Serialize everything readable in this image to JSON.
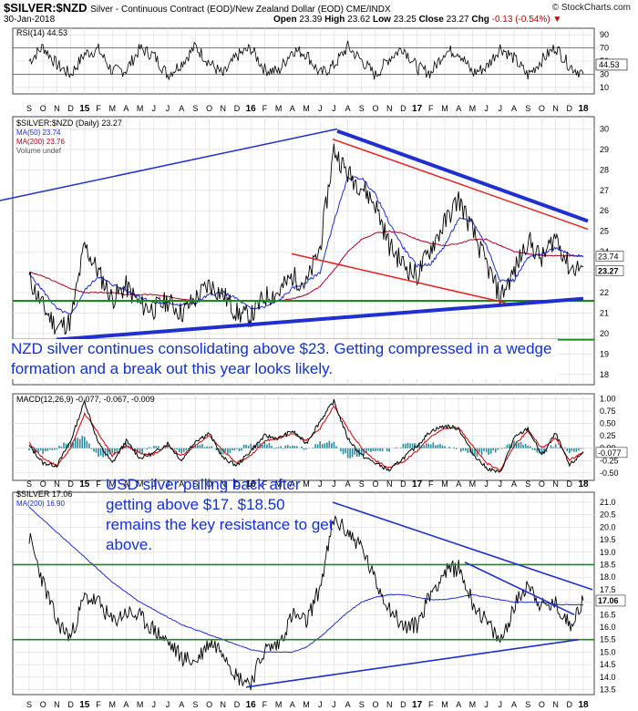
{
  "header": {
    "symbol": "$SILVER:$NZD",
    "description": "Silver - Continuous Contract (EOD)/New Zealand Dollar (EOD) CME/INDX",
    "date": "30-Jan-2018",
    "brand": "© StockCharts.com",
    "open_label": "Open",
    "open": "23.39",
    "high_label": "High",
    "high": "23.62",
    "low_label": "Low",
    "low": "23.25",
    "close_label": "Close",
    "close": "23.27",
    "chg_label": "Chg",
    "chg": "-0.13 (-0.54%)"
  },
  "annotations": {
    "nzd": "NZD silver continues consolidating above $23. Getting compressed in a wedge formation and a break out this year looks likely.",
    "usd": "USD silver pulling back after getting above $17. $18.50 remains the key resistance to get above."
  },
  "colors": {
    "price": "#000000",
    "ma50": "#1f2fd0",
    "ma200": "#b00020",
    "trend": "#1f2fd0",
    "channel": "#e82020",
    "support": "#1a8a1a",
    "histogram": "#2a8aa0",
    "macd_signal": "#d00000"
  },
  "x_axis": {
    "labels": [
      "S",
      "O",
      "N",
      "D",
      "15",
      "F",
      "M",
      "A",
      "M",
      "J",
      "J",
      "A",
      "S",
      "O",
      "N",
      "D",
      "16",
      "F",
      "M",
      "A",
      "M",
      "J",
      "J",
      "A",
      "S",
      "O",
      "N",
      "D",
      "17",
      "F",
      "M",
      "A",
      "M",
      "J",
      "J",
      "A",
      "S",
      "O",
      "N",
      "D",
      "18"
    ],
    "bold": [
      "15",
      "16",
      "17",
      "18"
    ]
  },
  "chart_data": [
    {
      "type": "line",
      "panel": "rsi",
      "legend": "RSI(14) 44.53",
      "y_ticks": [
        90,
        70,
        50,
        30,
        10
      ],
      "ylim": [
        0,
        100
      ],
      "reference_lines": [
        70,
        30
      ],
      "last_value": "44.53",
      "approx_range": [
        25,
        82
      ]
    },
    {
      "type": "line",
      "panel": "nzd",
      "legend": [
        "$SILVER:$NZD (Daily) 23.27",
        "MA(50) 23.74",
        "MA(200) 23.76",
        "Volume undef"
      ],
      "y_ticks": [
        30,
        29,
        28,
        27,
        26,
        25,
        24,
        23,
        22,
        21,
        20,
        19,
        18
      ],
      "ylim": [
        17.5,
        30.6
      ],
      "price_label": "23.27",
      "ma50_label": "23.74",
      "ma200_label": "23.76",
      "x": [
        "S",
        "O",
        "N",
        "D",
        "15",
        "F",
        "M",
        "A",
        "M",
        "J",
        "J",
        "A",
        "S",
        "O",
        "N",
        "D",
        "16",
        "F",
        "M",
        "A",
        "M",
        "J",
        "J",
        "A",
        "S",
        "O",
        "N",
        "D",
        "17",
        "F",
        "M",
        "A",
        "M",
        "J",
        "J",
        "A",
        "S",
        "O",
        "N",
        "D",
        "18"
      ],
      "series": [
        {
          "name": "$SILVER:$NZD",
          "values": [
            22.7,
            21.3,
            20.3,
            20.6,
            24.3,
            23.0,
            21.7,
            22.3,
            21.4,
            21.2,
            21.6,
            21.0,
            21.7,
            22.4,
            21.9,
            21.0,
            20.8,
            21.8,
            22.0,
            22.8,
            22.4,
            24.2,
            29.0,
            27.8,
            27.2,
            26.3,
            24.3,
            23.4,
            22.8,
            24.2,
            25.4,
            26.6,
            25.0,
            23.4,
            21.8,
            23.0,
            24.6,
            23.6,
            24.8,
            23.2,
            23.27
          ]
        },
        {
          "name": "MA(50)",
          "values": [
            22.9,
            22.1,
            21.2,
            20.9,
            22.1,
            22.8,
            22.4,
            22.1,
            21.8,
            21.5,
            21.5,
            21.4,
            21.5,
            21.9,
            22.0,
            21.7,
            21.2,
            21.3,
            21.6,
            22.2,
            22.5,
            23.0,
            25.5,
            27.6,
            27.6,
            26.8,
            25.4,
            24.2,
            23.3,
            23.4,
            24.3,
            25.6,
            25.5,
            24.3,
            22.6,
            22.6,
            23.7,
            23.9,
            24.2,
            23.9,
            23.74
          ]
        },
        {
          "name": "MA(200)",
          "values": [
            23.0,
            22.8,
            22.5,
            22.2,
            22.0,
            22.0,
            22.0,
            21.9,
            21.9,
            21.9,
            21.8,
            21.7,
            21.6,
            21.6,
            21.6,
            21.6,
            21.6,
            21.6,
            21.6,
            21.7,
            21.9,
            22.3,
            23.1,
            24.0,
            24.6,
            24.9,
            25.0,
            24.9,
            24.6,
            24.4,
            24.3,
            24.4,
            24.6,
            24.6,
            24.3,
            24.0,
            23.9,
            23.8,
            23.8,
            23.8,
            23.76
          ]
        }
      ],
      "trendlines": [
        "upper wedge line",
        "lower wedge line",
        "red channel upper",
        "red channel lower"
      ],
      "support_levels": [
        21.6,
        19.7
      ]
    },
    {
      "type": "line",
      "panel": "macd",
      "legend": [
        "MACD(12,26,9) -0.077, -0.067, -0.009"
      ],
      "y_ticks": [
        1.0,
        0.75,
        0.5,
        0.25,
        0.0,
        -0.25,
        -0.5
      ],
      "ylim": [
        -0.65,
        1.1
      ],
      "last_values": [
        "-0.067",
        "-0.077"
      ],
      "series": [
        {
          "name": "MACD",
          "values": [
            0.05,
            -0.3,
            -0.35,
            0.15,
            0.95,
            0.1,
            -0.3,
            0.15,
            -0.2,
            -0.1,
            0.1,
            -0.25,
            0.15,
            0.3,
            -0.2,
            -0.35,
            -0.05,
            0.25,
            0.2,
            0.35,
            0.1,
            0.55,
            0.95,
            0.2,
            -0.15,
            -0.3,
            -0.45,
            -0.2,
            0.05,
            0.35,
            0.45,
            0.4,
            -0.1,
            -0.4,
            -0.5,
            0.2,
            0.4,
            -0.15,
            0.3,
            -0.35,
            -0.077
          ]
        },
        {
          "name": "Signal",
          "values": [
            0.1,
            -0.2,
            -0.35,
            0.0,
            0.7,
            0.3,
            -0.15,
            0.05,
            -0.1,
            -0.12,
            0.05,
            -0.15,
            0.05,
            0.25,
            -0.05,
            -0.3,
            -0.15,
            0.15,
            0.2,
            0.3,
            0.15,
            0.4,
            0.85,
            0.4,
            0.0,
            -0.25,
            -0.4,
            -0.28,
            -0.05,
            0.25,
            0.4,
            0.42,
            0.05,
            -0.3,
            -0.45,
            0.05,
            0.35,
            0.0,
            0.2,
            -0.25,
            -0.067
          ]
        }
      ]
    },
    {
      "type": "line",
      "panel": "usd",
      "legend": [
        "$SILVER 17.06",
        "MA(200) 16.90"
      ],
      "y_ticks": [
        21.0,
        20.5,
        20.0,
        19.5,
        19.0,
        18.5,
        18.0,
        17.5,
        17.0,
        16.5,
        16.0,
        15.5,
        15.0,
        14.5,
        14.0,
        13.5
      ],
      "ylim": [
        13.3,
        21.4
      ],
      "price_label": "17.06",
      "ma200_label": "16.90",
      "x": [
        "S",
        "O",
        "N",
        "D",
        "15",
        "F",
        "M",
        "A",
        "M",
        "J",
        "J",
        "A",
        "S",
        "O",
        "N",
        "D",
        "16",
        "F",
        "M",
        "A",
        "M",
        "J",
        "J",
        "A",
        "S",
        "O",
        "N",
        "D",
        "17",
        "F",
        "M",
        "A",
        "M",
        "J",
        "J",
        "A",
        "S",
        "O",
        "N",
        "D",
        "18"
      ],
      "series": [
        {
          "name": "$SILVER",
          "values": [
            19.6,
            17.8,
            16.2,
            15.6,
            17.2,
            17.0,
            16.2,
            16.6,
            16.4,
            15.9,
            15.4,
            14.8,
            14.6,
            15.4,
            15.1,
            14.0,
            13.8,
            15.1,
            15.3,
            16.5,
            16.2,
            17.6,
            20.3,
            19.8,
            19.2,
            17.8,
            16.8,
            16.0,
            16.1,
            17.4,
            18.2,
            18.4,
            17.0,
            16.2,
            15.4,
            16.8,
            17.8,
            16.8,
            16.9,
            16.1,
            17.06
          ]
        },
        {
          "name": "MA(200)",
          "values": [
            20.8,
            20.3,
            19.8,
            19.3,
            18.8,
            18.3,
            17.8,
            17.4,
            17.0,
            16.7,
            16.4,
            16.1,
            15.9,
            15.7,
            15.5,
            15.3,
            15.1,
            15.0,
            15.0,
            15.0,
            15.2,
            15.6,
            16.1,
            16.6,
            17.0,
            17.2,
            17.3,
            17.3,
            17.2,
            17.1,
            17.1,
            17.2,
            17.3,
            17.2,
            17.1,
            17.0,
            17.0,
            17.0,
            16.9,
            16.9,
            16.9
          ]
        }
      ],
      "trendlines": [
        "upper falling trendline",
        "lower rising trendline"
      ],
      "support_levels": [
        18.5,
        15.5
      ]
    }
  ]
}
